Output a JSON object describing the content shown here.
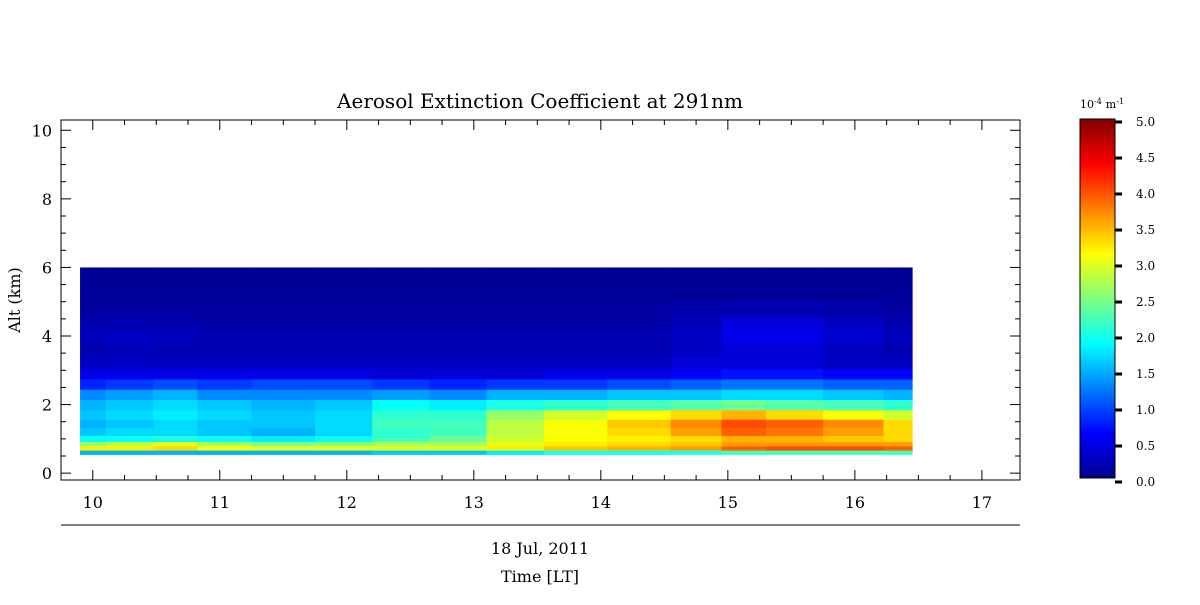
{
  "chart_data": {
    "type": "heatmap",
    "title": "Aerosol Extinction Coefficient at 291nm",
    "ylabel": "Alt (km)",
    "xlabel": "Time [LT]",
    "date_label": "18 Jul, 2011",
    "xlim": [
      9.75,
      17.3
    ],
    "ylim": [
      -0.2,
      10.3
    ],
    "x_ticks": [
      10,
      11,
      12,
      13,
      14,
      15,
      16,
      17
    ],
    "y_ticks": [
      0,
      2,
      4,
      6,
      8,
      10
    ],
    "grid": false,
    "data_extent": {
      "x": [
        9.9,
        16.45
      ],
      "y": [
        0.55,
        6.0
      ]
    },
    "colorbar": {
      "unit_base": "10",
      "unit_exp": "-4",
      "unit_m": "m",
      "unit_m_exp": "-1",
      "range": [
        0.0,
        5.0
      ],
      "tick_labels": [
        "0.0",
        "0.5",
        "1.0",
        "1.5",
        "2.0",
        "2.5",
        "3.0",
        "3.5",
        "4.0",
        "4.5",
        "5.0"
      ],
      "colormap": "jet",
      "placement": "right"
    },
    "field": {
      "times": [
        9.9,
        10.3,
        10.65,
        11.0,
        11.5,
        12.0,
        12.4,
        12.9,
        13.3,
        13.8,
        14.3,
        14.8,
        15.1,
        15.5,
        16.0,
        16.45
      ],
      "altitudes": [
        0.6,
        0.75,
        0.85,
        1.0,
        1.2,
        1.45,
        1.7,
        2.0,
        2.3,
        2.6,
        2.9,
        3.2,
        3.6,
        4.0,
        4.3,
        4.8,
        5.3,
        6.0
      ],
      "values": [
        [
          1.5,
          1.5,
          1.5,
          1.5,
          1.5,
          1.5,
          1.6,
          1.6,
          1.8,
          2.0,
          2.0,
          2.0,
          2.2,
          2.2,
          2.2,
          2.2
        ],
        [
          3.2,
          3.2,
          3.3,
          3.1,
          3.0,
          3.0,
          3.0,
          3.0,
          3.2,
          3.4,
          3.5,
          3.6,
          3.9,
          4.0,
          4.0,
          3.9
        ],
        [
          2.6,
          2.8,
          3.0,
          2.7,
          2.5,
          2.6,
          2.7,
          2.7,
          3.0,
          3.2,
          3.3,
          3.4,
          3.6,
          3.6,
          3.6,
          3.6
        ],
        [
          1.9,
          1.9,
          2.0,
          1.9,
          1.8,
          1.9,
          2.2,
          2.4,
          2.9,
          3.1,
          3.2,
          3.3,
          3.5,
          3.5,
          3.4,
          3.3
        ],
        [
          1.6,
          1.7,
          1.7,
          1.6,
          1.5,
          1.7,
          2.1,
          2.2,
          2.8,
          3.1,
          3.3,
          3.6,
          3.9,
          3.8,
          3.6,
          3.3
        ],
        [
          1.5,
          1.6,
          1.7,
          1.6,
          1.6,
          1.7,
          2.2,
          2.2,
          2.8,
          3.1,
          3.4,
          3.7,
          4.0,
          3.9,
          3.7,
          3.3
        ],
        [
          1.6,
          1.7,
          1.8,
          1.7,
          1.6,
          1.7,
          2.1,
          2.1,
          2.6,
          2.9,
          3.1,
          3.3,
          3.5,
          3.3,
          3.1,
          2.9
        ],
        [
          1.5,
          1.6,
          1.7,
          1.6,
          1.5,
          1.6,
          1.9,
          1.8,
          2.0,
          2.1,
          2.2,
          2.3,
          2.4,
          2.3,
          2.2,
          2.1
        ],
        [
          1.3,
          1.4,
          1.5,
          1.3,
          1.3,
          1.3,
          1.4,
          1.3,
          1.5,
          1.5,
          1.6,
          1.6,
          1.7,
          1.7,
          1.6,
          1.5
        ],
        [
          0.8,
          0.9,
          1.0,
          0.9,
          1.0,
          1.0,
          0.9,
          0.8,
          0.9,
          0.9,
          1.0,
          1.1,
          1.2,
          1.2,
          1.1,
          1.1
        ],
        [
          0.5,
          0.5,
          0.5,
          0.5,
          0.5,
          0.5,
          0.4,
          0.4,
          0.4,
          0.5,
          0.5,
          0.6,
          0.7,
          0.7,
          0.6,
          0.6
        ],
        [
          0.3,
          0.3,
          0.3,
          0.3,
          0.3,
          0.3,
          0.3,
          0.3,
          0.3,
          0.3,
          0.3,
          0.4,
          0.4,
          0.4,
          0.3,
          0.3
        ],
        [
          0.2,
          0.25,
          0.2,
          0.2,
          0.2,
          0.2,
          0.2,
          0.2,
          0.2,
          0.2,
          0.2,
          0.3,
          0.4,
          0.4,
          0.3,
          0.2
        ],
        [
          0.25,
          0.3,
          0.25,
          0.2,
          0.2,
          0.2,
          0.2,
          0.2,
          0.2,
          0.2,
          0.2,
          0.3,
          0.5,
          0.5,
          0.35,
          0.25
        ],
        [
          0.2,
          0.2,
          0.2,
          0.15,
          0.15,
          0.15,
          0.15,
          0.15,
          0.15,
          0.15,
          0.15,
          0.25,
          0.45,
          0.45,
          0.3,
          0.2
        ],
        [
          0.1,
          0.1,
          0.1,
          0.1,
          0.1,
          0.1,
          0.1,
          0.1,
          0.1,
          0.1,
          0.1,
          0.15,
          0.2,
          0.2,
          0.15,
          0.1
        ],
        [
          0.05,
          0.05,
          0.05,
          0.05,
          0.05,
          0.05,
          0.05,
          0.05,
          0.05,
          0.05,
          0.05,
          0.05,
          0.05,
          0.05,
          0.05,
          0.05
        ],
        [
          0.05,
          0.05,
          0.05,
          0.05,
          0.05,
          0.05,
          0.05,
          0.05,
          0.05,
          0.05,
          0.05,
          0.05,
          0.05,
          0.05,
          0.05,
          0.05
        ]
      ]
    }
  }
}
